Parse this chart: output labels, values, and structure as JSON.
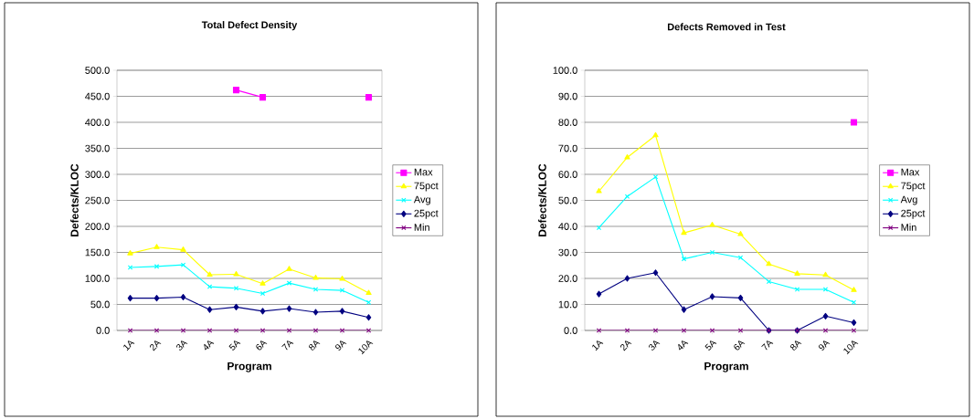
{
  "chart_data": [
    {
      "type": "line",
      "title": "Total Defect Density",
      "xlabel": "Program",
      "ylabel": "Defects/KLOC",
      "categories": [
        "1A",
        "2A",
        "3A",
        "4A",
        "5A",
        "6A",
        "7A",
        "8A",
        "9A",
        "10A"
      ],
      "series": [
        {
          "name": "Max",
          "color": "#ff00ff",
          "marker": "square",
          "values": [
            null,
            null,
            null,
            null,
            462,
            448,
            null,
            null,
            null,
            448
          ]
        },
        {
          "name": "75pct",
          "color": "#ffff00",
          "marker": "triangle",
          "values": [
            148,
            160,
            155,
            107,
            108,
            90,
            118,
            101,
            99,
            72
          ]
        },
        {
          "name": "Avg",
          "color": "#00ffff",
          "marker": "cross",
          "values": [
            121,
            123,
            126,
            84,
            81,
            71,
            91,
            79,
            77,
            54
          ]
        },
        {
          "name": "25pct",
          "color": "#000080",
          "marker": "diamond",
          "values": [
            62,
            62,
            64,
            40,
            45,
            37,
            42,
            35,
            37,
            25
          ]
        },
        {
          "name": "Min",
          "color": "#800080",
          "marker": "cross",
          "values": [
            0,
            0,
            0,
            0,
            0,
            0,
            0,
            0,
            0,
            0
          ]
        }
      ],
      "ylim": [
        0,
        500
      ],
      "yticks": [
        {
          "value": 0,
          "label": "0.0"
        },
        {
          "value": 50,
          "label": "50.0"
        },
        {
          "value": 100,
          "label": "100.0"
        },
        {
          "value": 150,
          "label": "150.0"
        },
        {
          "value": 200,
          "label": "200.0"
        },
        {
          "value": 250,
          "label": "250.0"
        },
        {
          "value": 300,
          "label": "300.0"
        },
        {
          "value": 350,
          "label": "350.0"
        },
        {
          "value": 400,
          "label": "400.0"
        },
        {
          "value": 450,
          "label": "450.0"
        },
        {
          "value": 500,
          "label": "500.0"
        }
      ],
      "grid": "y",
      "legend": "right"
    },
    {
      "type": "line",
      "title": "Defects Removed in Test",
      "xlabel": "Program",
      "ylabel": "Defects/KLOC",
      "categories": [
        "1A",
        "2A",
        "3A",
        "4A",
        "5A",
        "6A",
        "7A",
        "8A",
        "9A",
        "10A"
      ],
      "series": [
        {
          "name": "Max",
          "color": "#ff00ff",
          "marker": "square",
          "values": [
            null,
            null,
            null,
            null,
            null,
            null,
            null,
            null,
            null,
            80
          ]
        },
        {
          "name": "75pct",
          "color": "#ffff00",
          "marker": "triangle",
          "values": [
            53.5,
            66.5,
            75,
            37.5,
            40.5,
            37,
            25.5,
            21.8,
            21.3,
            15.5
          ]
        },
        {
          "name": "Avg",
          "color": "#00ffff",
          "marker": "cross",
          "values": [
            39.5,
            51.5,
            59,
            27.5,
            30,
            28,
            18.8,
            15.8,
            15.8,
            10.8
          ]
        },
        {
          "name": "25pct",
          "color": "#000080",
          "marker": "diamond",
          "values": [
            14,
            20,
            22.2,
            8,
            13,
            12.5,
            0,
            0,
            5.5,
            3
          ]
        },
        {
          "name": "Min",
          "color": "#800080",
          "marker": "cross",
          "values": [
            0,
            0,
            0,
            0,
            0,
            0,
            0,
            0,
            0,
            0
          ]
        }
      ],
      "ylim": [
        0,
        100
      ],
      "yticks": [
        {
          "value": 0,
          "label": "0.0"
        },
        {
          "value": 10,
          "label": "10.0"
        },
        {
          "value": 20,
          "label": "20.0"
        },
        {
          "value": 30,
          "label": "30.0"
        },
        {
          "value": 40,
          "label": "40.0"
        },
        {
          "value": 50,
          "label": "50.0"
        },
        {
          "value": 60,
          "label": "60.0"
        },
        {
          "value": 70,
          "label": "70.0"
        },
        {
          "value": 80,
          "label": "80.0"
        },
        {
          "value": 90,
          "label": "90.0"
        },
        {
          "value": 100,
          "label": "100.0"
        }
      ],
      "grid": "y",
      "legend": "right"
    }
  ]
}
